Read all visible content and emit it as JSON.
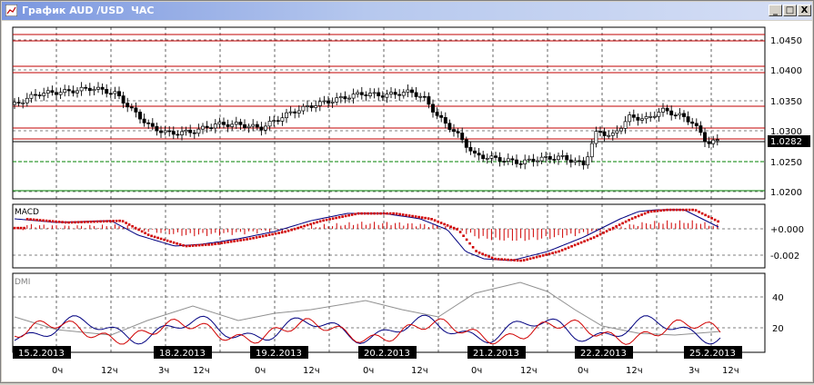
{
  "window": {
    "title": "График AUD /USD  ЧАС",
    "minimize_label": "_",
    "maximize_label": "□",
    "close_label": "X"
  },
  "price_panel": {
    "axis_labels": [
      "1.0450",
      "1.0400",
      "1.0350",
      "1.0300",
      "1.0250",
      "1.0200"
    ],
    "current_price": "1.0282"
  },
  "macd_panel": {
    "title": "MACD",
    "axis_labels": [
      "+0.000",
      "-0.002"
    ]
  },
  "dmi_panel": {
    "title": "DMI",
    "axis_labels": [
      "40",
      "20"
    ]
  },
  "time_axis": {
    "dates": [
      "15.2.2013",
      "18.2.2013",
      "19.2.2013",
      "20.2.2013",
      "21.2.2013",
      "22.2.2013",
      "25.2.2013"
    ],
    "hours": [
      "0ч",
      "12ч",
      "3ч",
      "12ч",
      "0ч",
      "12ч",
      "0ч",
      "12ч",
      "0ч",
      "12ч",
      "0ч",
      "12ч",
      "3ч",
      "12ч"
    ]
  },
  "colors": {
    "resistance_line": "#c00000",
    "support_line": "#008000",
    "macd_signal": "#d00000",
    "macd_line": "#000080",
    "dmi_adx": "#909090",
    "dmi_plus": "#000080",
    "dmi_minus": "#d00000",
    "date_label_bg": "#000000"
  }
}
